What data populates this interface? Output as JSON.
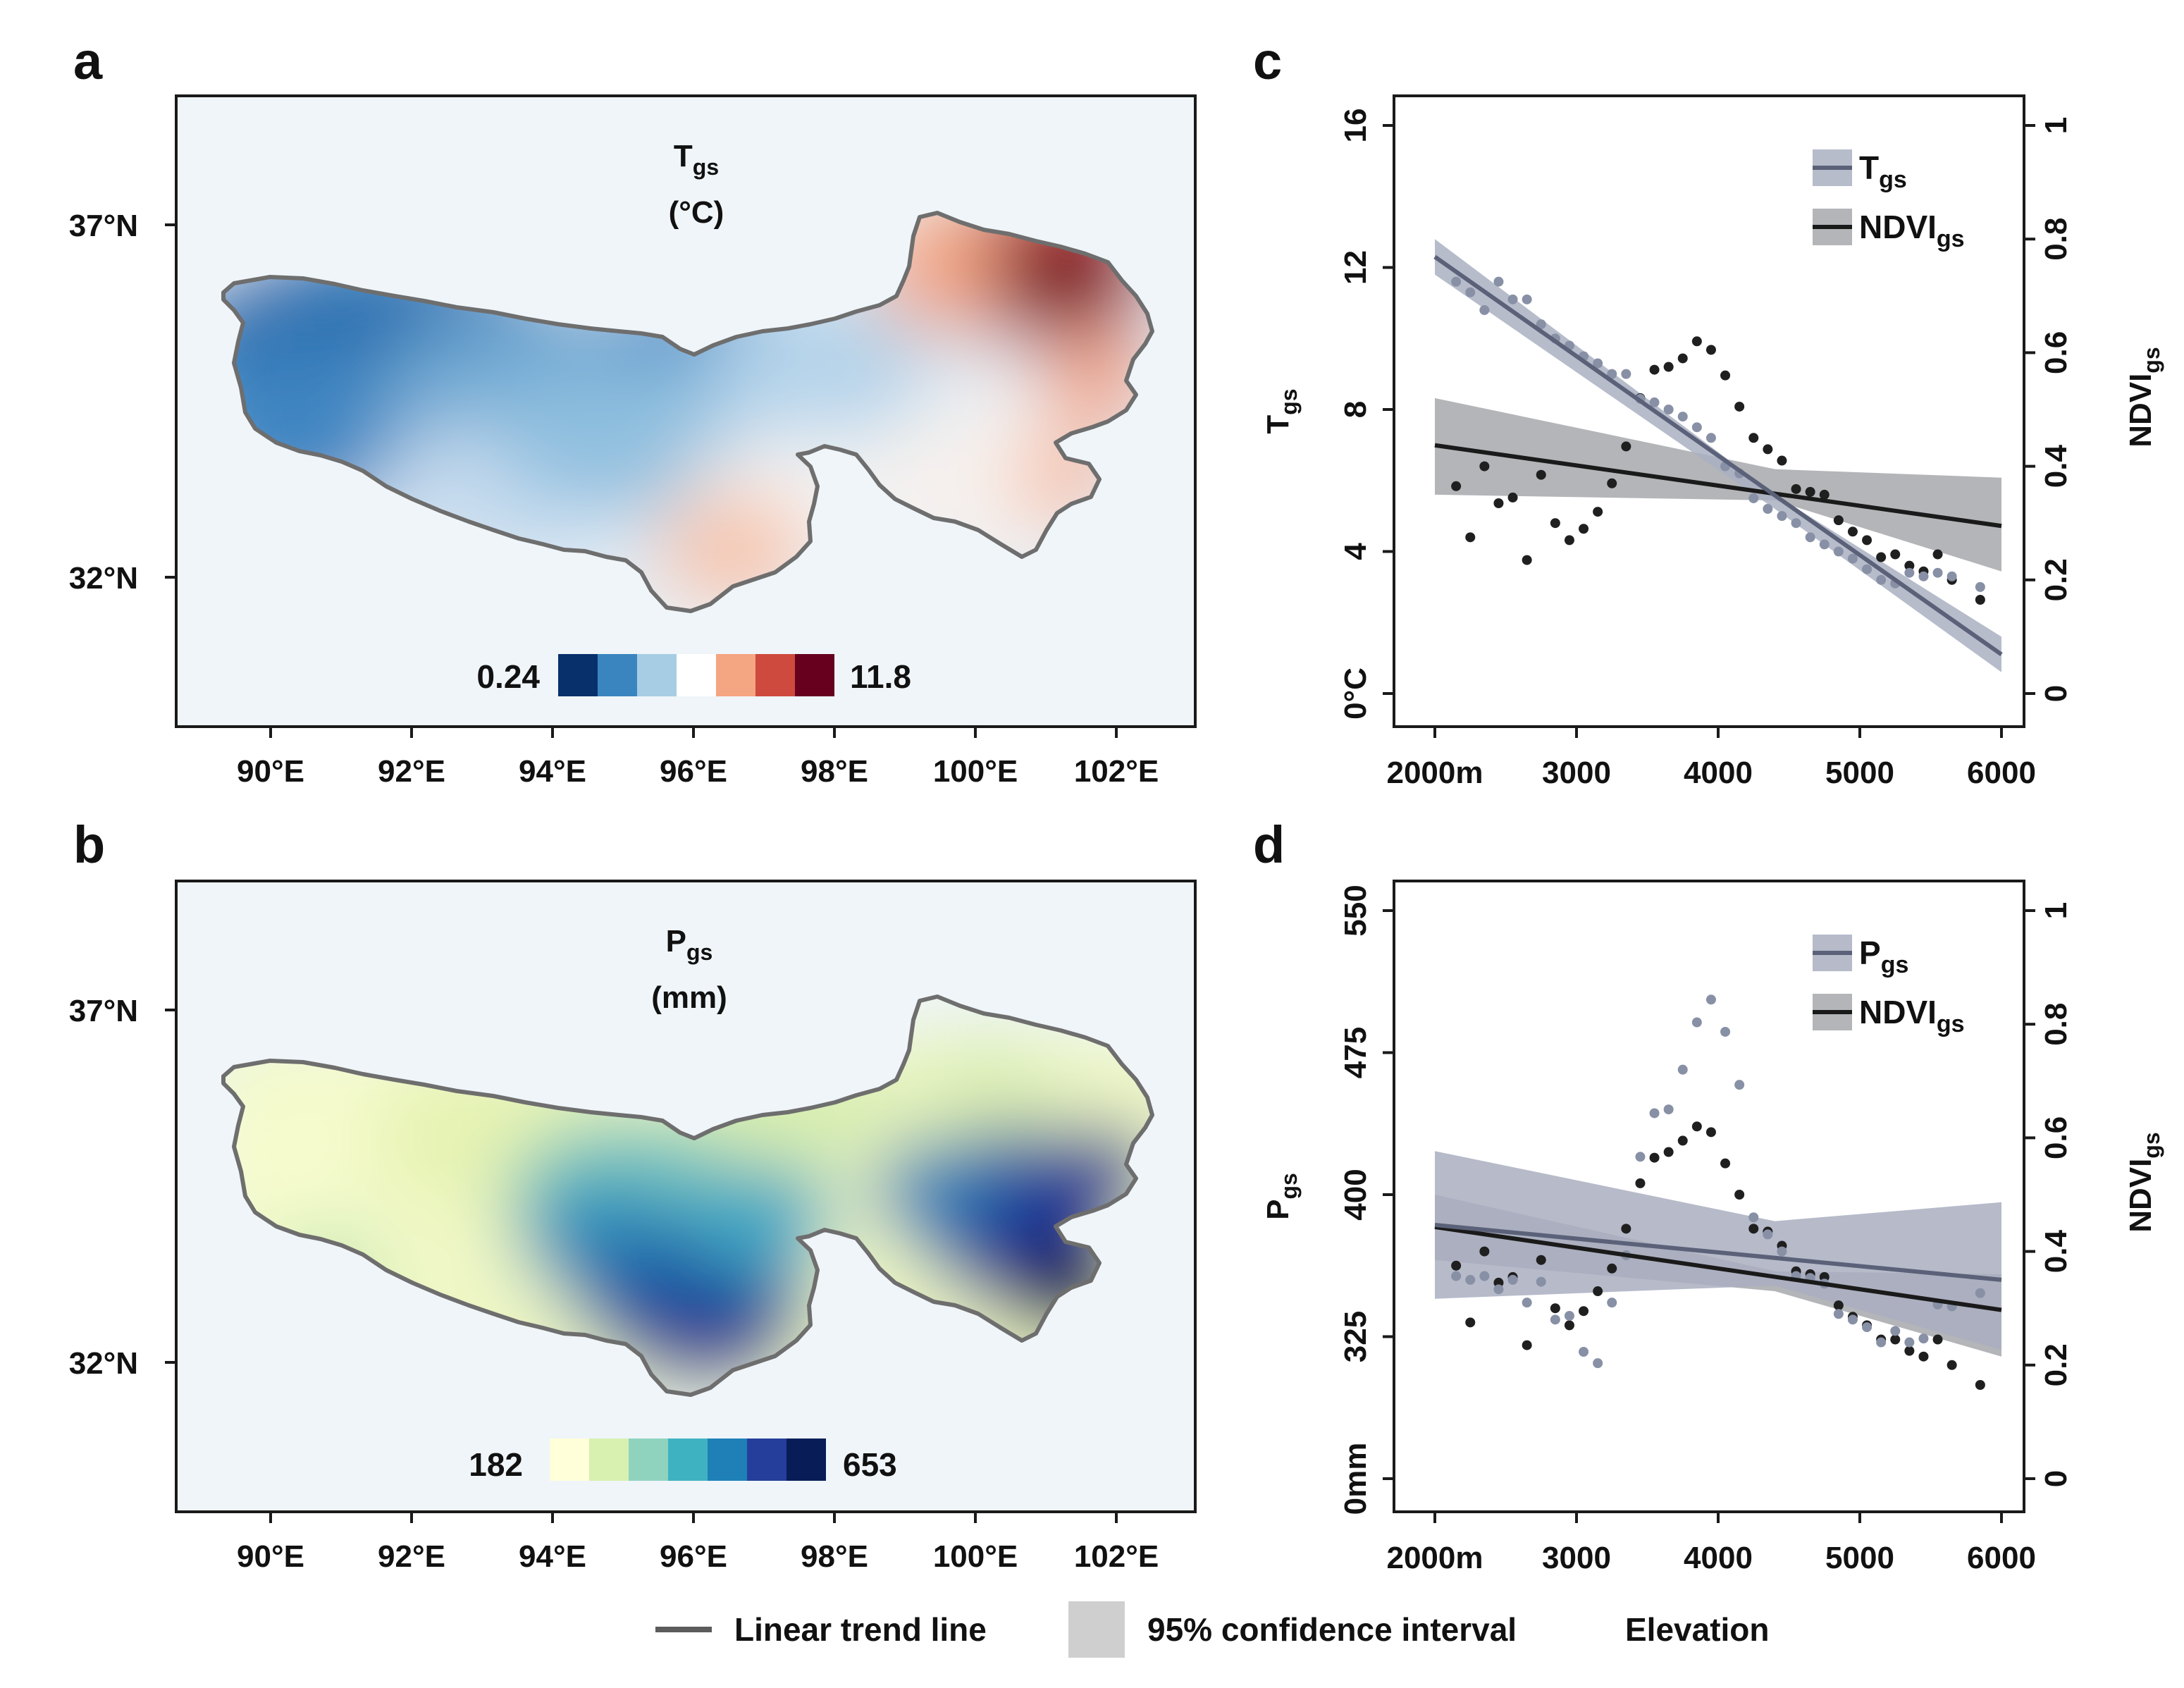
{
  "colors": {
    "map_background": "#eff5f9",
    "region_border": "#6e6e6e",
    "temperature_ramp": [
      "#08306b",
      "#2171b5",
      "#6baed6",
      "#c6dbef",
      "#f7f7f7",
      "#fcbba1",
      "#ef6548",
      "#b2182b",
      "#67001f"
    ],
    "precip_ramp": [
      "#ffffd9",
      "#edf8b1",
      "#c7e9b4",
      "#7fcdbb",
      "#41b6c4",
      "#1d91c0",
      "#225ea8",
      "#253494",
      "#081d58"
    ],
    "tgs_series": "#5a6178",
    "tgs_band": "#aab0c2",
    "pgs_series": "#5a6178",
    "pgs_band": "#a9aebf",
    "ndvi_series": "#1a1a1a",
    "ndvi_band": "#a6a8ab",
    "tgs_points": "#8890a6",
    "ndvi_points": "#1f1f1f"
  },
  "panels": {
    "a": {
      "letter": "a",
      "title_main": "T",
      "title_sub": "gs",
      "title_unit": "(°C)",
      "colorbar_min": "0.24",
      "colorbar_max": "11.8",
      "colorbar_colors": [
        "#08306b",
        "#3a85c0",
        "#a6cde4",
        "#ffffff",
        "#f4a582",
        "#cf4a3e",
        "#67001f"
      ]
    },
    "b": {
      "letter": "b",
      "title_main": "P",
      "title_sub": "gs",
      "title_unit": "(mm)",
      "colorbar_min": "182",
      "colorbar_max": "653",
      "colorbar_colors": [
        "#ffffd9",
        "#d8f0b0",
        "#8fd3bf",
        "#3fb2c2",
        "#1f80b8",
        "#253e9c",
        "#081d58"
      ]
    },
    "c": {
      "letter": "c"
    },
    "d": {
      "letter": "d"
    }
  },
  "map_axes": {
    "x_ticks": [
      "90°E",
      "92°E",
      "94°E",
      "96°E",
      "98°E",
      "100°E",
      "102°E"
    ],
    "y_ticks": [
      "37°N",
      "32°N"
    ]
  },
  "bottom_legend": {
    "trend_line": "Linear trend line",
    "confidence": "95% confidence interval",
    "xaxis_caption": "Elevation"
  },
  "chart_data": [
    {
      "type": "scatter",
      "panel": "c",
      "x_ticks": [
        "2000m",
        "3000",
        "4000",
        "5000",
        "6000"
      ],
      "xlim": [
        2000,
        6000
      ],
      "y_left": {
        "label_main": "T",
        "label_sub": "gs",
        "ticks": [
          "0°C",
          "4",
          "8",
          "12",
          "16"
        ],
        "ylim": [
          0,
          16
        ]
      },
      "y_right": {
        "label_main": "NDVI",
        "label_sub": "gs",
        "ticks": [
          "0",
          "0.2",
          "0.4",
          "0.6",
          "0.8",
          "1"
        ],
        "ylim": [
          0,
          1
        ]
      },
      "legend": [
        {
          "main": "T",
          "sub": "gs"
        },
        {
          "main": "NDVI",
          "sub": "gs"
        }
      ],
      "series": [
        {
          "axis": "left",
          "trend": {
            "x": [
              2000,
              6000
            ],
            "y": [
              12.3,
              1.1
            ]
          },
          "band": {
            "x": [
              2000,
              4400,
              6000
            ],
            "upper": [
              12.8,
              5.6,
              1.6
            ],
            "lower": [
              11.8,
              5.2,
              0.6
            ]
          },
          "points": {
            "x": [
              2150,
              2250,
              2350,
              2450,
              2550,
              2650,
              2750,
              2850,
              2950,
              3050,
              3150,
              3250,
              3350,
              3450,
              3550,
              3650,
              3750,
              3850,
              3950,
              4050,
              4150,
              4250,
              4350,
              4450,
              4550,
              4650,
              4750,
              4850,
              4950,
              5050,
              5150,
              5250,
              5350,
              5450,
              5550,
              5650,
              5850
            ],
            "y": [
              11.6,
              11.3,
              10.8,
              11.6,
              11.1,
              11.1,
              10.4,
              10.0,
              9.8,
              9.5,
              9.3,
              9.0,
              9.0,
              8.3,
              8.2,
              8.0,
              7.8,
              7.5,
              7.2,
              6.4,
              6.2,
              5.5,
              5.2,
              5.0,
              4.8,
              4.4,
              4.2,
              4.0,
              3.8,
              3.5,
              3.2,
              3.1,
              3.4,
              3.3,
              3.4,
              3.3,
              3.0
            ]
          }
        },
        {
          "axis": "right",
          "trend": {
            "x": [
              2000,
              6000
            ],
            "y": [
              0.437,
              0.295
            ]
          },
          "band": {
            "x": [
              2000,
              4400,
              6000
            ],
            "upper": [
              0.52,
              0.395,
              0.38
            ],
            "lower": [
              0.35,
              0.34,
              0.215
            ]
          },
          "points": {
            "x": [
              2150,
              2250,
              2350,
              2450,
              2550,
              2650,
              2750,
              2850,
              2950,
              3050,
              3150,
              3250,
              3350,
              3450,
              3550,
              3650,
              3750,
              3850,
              3950,
              4050,
              4150,
              4250,
              4350,
              4450,
              4550,
              4650,
              4750,
              4850,
              4950,
              5050,
              5150,
              5250,
              5350,
              5450,
              5550,
              5650,
              5850
            ],
            "y": [
              0.365,
              0.275,
              0.4,
              0.335,
              0.345,
              0.235,
              0.385,
              0.3,
              0.27,
              0.29,
              0.32,
              0.37,
              0.435,
              0.52,
              0.57,
              0.575,
              0.59,
              0.62,
              0.605,
              0.56,
              0.505,
              0.45,
              0.43,
              0.41,
              0.36,
              0.355,
              0.35,
              0.305,
              0.285,
              0.27,
              0.24,
              0.245,
              0.225,
              0.215,
              0.245,
              0.2,
              0.165
            ]
          }
        }
      ]
    },
    {
      "type": "scatter",
      "panel": "d",
      "x_ticks": [
        "2000m",
        "3000",
        "4000",
        "5000",
        "6000"
      ],
      "xlim": [
        2000,
        6000
      ],
      "y_left": {
        "label_main": "P",
        "label_sub": "gs",
        "ticks": [
          "0mm",
          "325",
          "400",
          "475",
          "550"
        ],
        "ylim": [
          250,
          550
        ]
      },
      "y_right": {
        "label_main": "NDVI",
        "label_sub": "gs",
        "ticks": [
          "0",
          "0.2",
          "0.4",
          "0.6",
          "0.8",
          "1"
        ],
        "ylim": [
          0,
          1
        ]
      },
      "legend": [
        {
          "main": "P",
          "sub": "gs"
        },
        {
          "main": "NDVI",
          "sub": "gs"
        }
      ],
      "series": [
        {
          "axis": "left",
          "trend": {
            "x": [
              2000,
              6000
            ],
            "y": [
              384,
              355
            ]
          },
          "band": {
            "x": [
              2000,
              4400,
              6000
            ],
            "upper": [
              423,
              386,
              396
            ],
            "lower": [
              345,
              352,
              318
            ]
          },
          "points": {
            "x": [
              2150,
              2250,
              2350,
              2450,
              2550,
              2650,
              2750,
              2850,
              2950,
              3050,
              3150,
              3250,
              3350,
              3450,
              3550,
              3650,
              3750,
              3850,
              3950,
              4050,
              4150,
              4250,
              4350,
              4450,
              4550,
              4650,
              4750,
              4850,
              4950,
              5050,
              5150,
              5250,
              5350,
              5450,
              5550,
              5650,
              5850
            ],
            "y": [
              357,
              355,
              357,
              350,
              355,
              343,
              354,
              334,
              336,
              317,
              311,
              343,
              368,
              420,
              443,
              445,
              466,
              491,
              503,
              486,
              458,
              388,
              379,
              370,
              357,
              356,
              353,
              337,
              334,
              330,
              322,
              328,
              322,
              324,
              342,
              341,
              348
            ]
          }
        },
        {
          "axis": "right",
          "trend": {
            "x": [
              2000,
              6000
            ],
            "y": [
              0.443,
              0.297
            ]
          },
          "band": {
            "x": [
              2000,
              4400,
              6000
            ],
            "upper": [
              0.5,
              0.365,
              0.36
            ],
            "lower": [
              0.385,
              0.33,
              0.215
            ]
          },
          "points": {
            "x": [
              2150,
              2250,
              2350,
              2450,
              2550,
              2650,
              2750,
              2850,
              2950,
              3050,
              3150,
              3250,
              3350,
              3450,
              3550,
              3650,
              3750,
              3850,
              3950,
              4050,
              4150,
              4250,
              4350,
              4450,
              4550,
              4650,
              4750,
              4850,
              4950,
              5050,
              5150,
              5250,
              5350,
              5450,
              5550,
              5650,
              5850
            ],
            "y": [
              0.375,
              0.275,
              0.4,
              0.345,
              0.355,
              0.235,
              0.385,
              0.3,
              0.27,
              0.295,
              0.33,
              0.37,
              0.44,
              0.52,
              0.565,
              0.575,
              0.595,
              0.62,
              0.61,
              0.555,
              0.5,
              0.44,
              0.435,
              0.41,
              0.365,
              0.36,
              0.355,
              0.305,
              0.285,
              0.27,
              0.245,
              0.245,
              0.225,
              0.215,
              0.245,
              0.2,
              0.165
            ]
          }
        }
      ]
    }
  ]
}
